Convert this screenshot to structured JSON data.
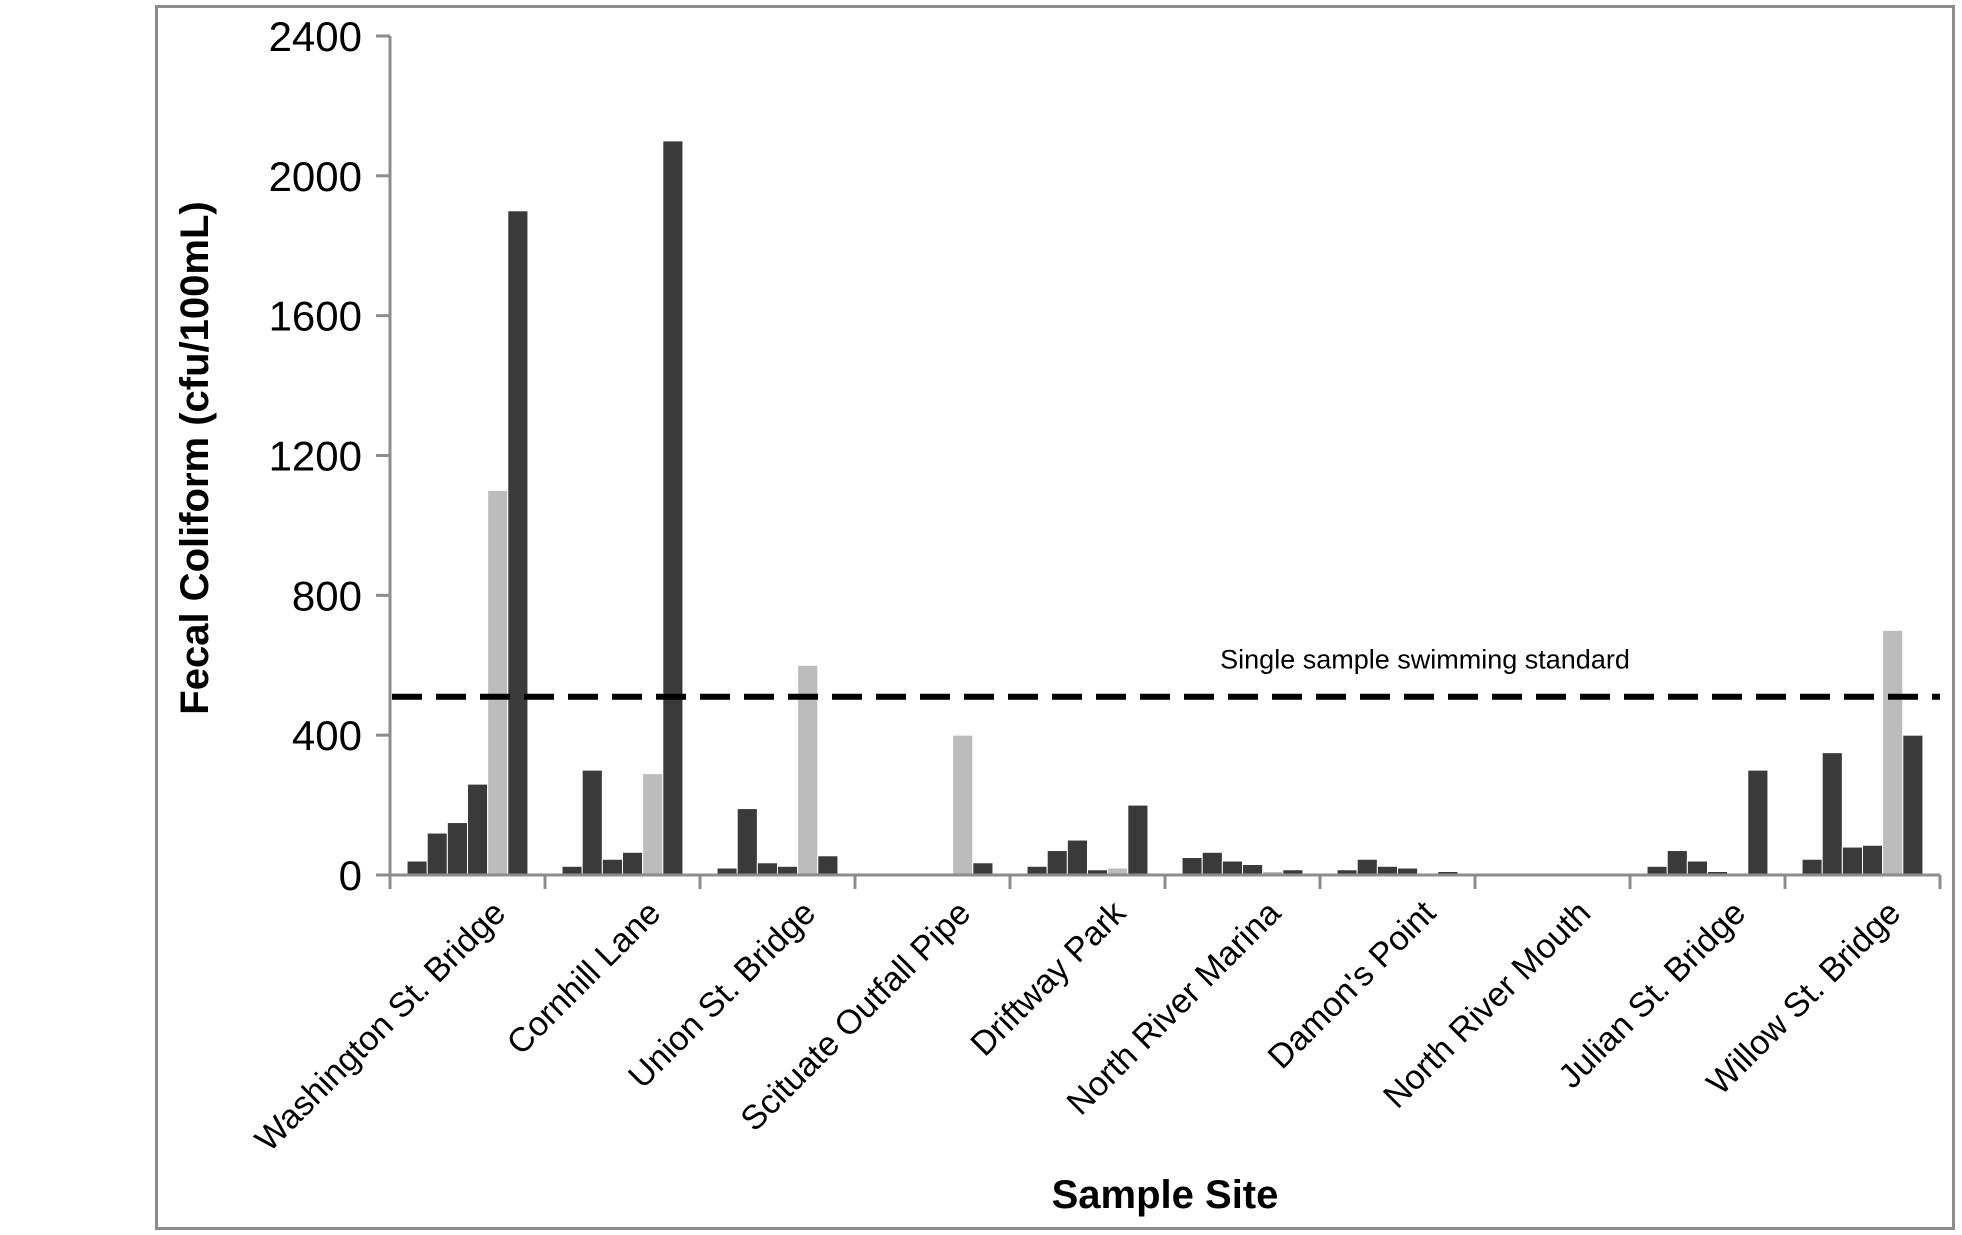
{
  "chart_data": {
    "type": "bar",
    "title": "",
    "xlabel": "Sample Site",
    "ylabel": "Fecal Coliform (cfu/100mL)",
    "ylim": [
      0,
      2400
    ],
    "yticks": [
      0,
      400,
      800,
      1200,
      1600,
      2000,
      2400
    ],
    "grid": false,
    "legend": "none",
    "categories": [
      "Washington St. Bridge",
      "Cornhill Lane",
      "Union St. Bridge",
      "Scituate Outfall Pipe",
      "Driftway Park",
      "North River Marina",
      "Damon's Point",
      "North River Mouth",
      "Julian St. Bridge",
      "Willow St. Bridge"
    ],
    "series": [
      {
        "color": "#3a3a3a",
        "values": [
          40,
          25,
          20,
          0,
          25,
          50,
          15,
          0,
          25,
          45
        ]
      },
      {
        "color": "#3a3a3a",
        "values": [
          120,
          300,
          190,
          0,
          70,
          65,
          45,
          0,
          70,
          350
        ]
      },
      {
        "color": "#3a3a3a",
        "values": [
          150,
          45,
          35,
          0,
          100,
          40,
          25,
          0,
          40,
          80
        ]
      },
      {
        "color": "#3a3a3a",
        "values": [
          260,
          65,
          25,
          0,
          15,
          30,
          20,
          0,
          10,
          85
        ]
      },
      {
        "color": "#bcbcbc",
        "values": [
          1100,
          290,
          600,
          400,
          20,
          10,
          5,
          0,
          5,
          700
        ]
      },
      {
        "color": "#3a3a3a",
        "values": [
          1900,
          2100,
          55,
          35,
          200,
          15,
          10,
          0,
          300,
          400
        ]
      }
    ],
    "reference_line": {
      "value": 510,
      "label": "Single sample swimming standard",
      "style": "dashed",
      "color": "#000000"
    }
  }
}
